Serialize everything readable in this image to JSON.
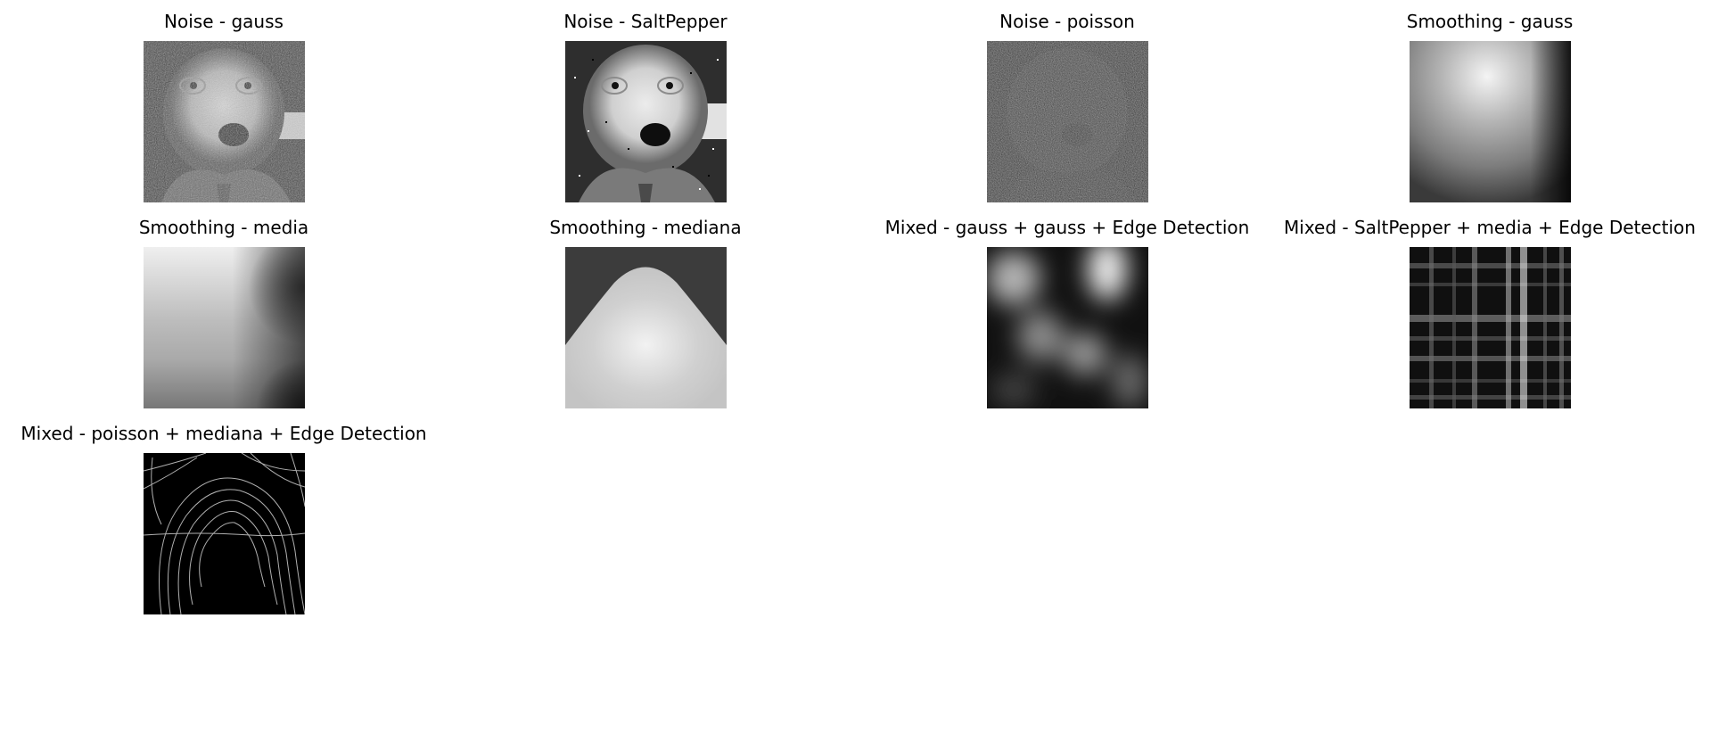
{
  "figure": {
    "panels": [
      {
        "title": "Noise - gauss"
      },
      {
        "title": "Noise - SaltPepper"
      },
      {
        "title": "Noise - poisson"
      },
      {
        "title": "Smoothing - gauss"
      },
      {
        "title": "Smoothing - media"
      },
      {
        "title": "Smoothing - mediana"
      },
      {
        "title": "Mixed - gauss + gauss + Edge Detection"
      },
      {
        "title": "Mixed - SaltPepper + media + Edge Detection"
      },
      {
        "title": "Mixed - poisson + mediana + Edge Detection"
      }
    ]
  }
}
